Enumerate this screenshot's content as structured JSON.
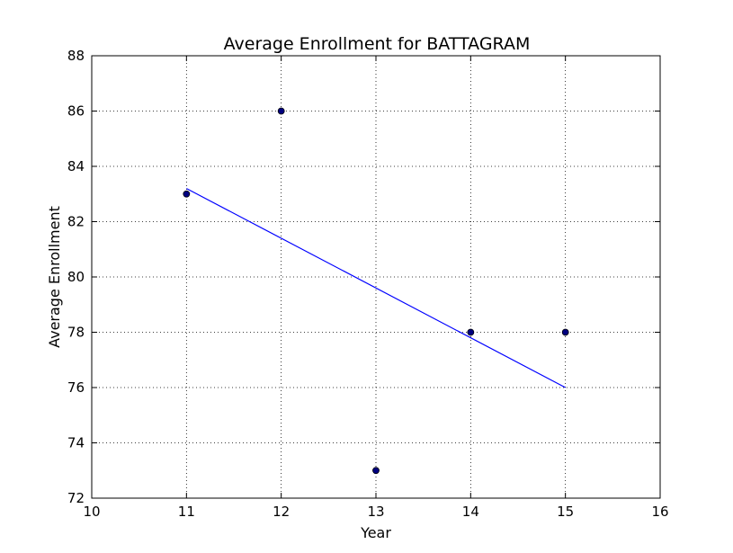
{
  "chart_data": {
    "type": "scatter",
    "title": "Average Enrollment for BATTAGRAM",
    "xlabel": "Year",
    "ylabel": "Average Enrollment",
    "xlim": [
      10,
      16
    ],
    "ylim": [
      72,
      88
    ],
    "xticks": [
      10,
      11,
      12,
      13,
      14,
      15,
      16
    ],
    "yticks": [
      72,
      74,
      76,
      78,
      80,
      82,
      84,
      86,
      88
    ],
    "grid": true,
    "point_color": "#00007f",
    "line_color": "#0000ff",
    "points": [
      {
        "x": 11,
        "y": 83
      },
      {
        "x": 12,
        "y": 86
      },
      {
        "x": 13,
        "y": 73
      },
      {
        "x": 14,
        "y": 78
      },
      {
        "x": 15,
        "y": 78
      }
    ],
    "trendline": [
      {
        "x": 11,
        "y": 83.2
      },
      {
        "x": 15,
        "y": 76.0
      }
    ]
  }
}
